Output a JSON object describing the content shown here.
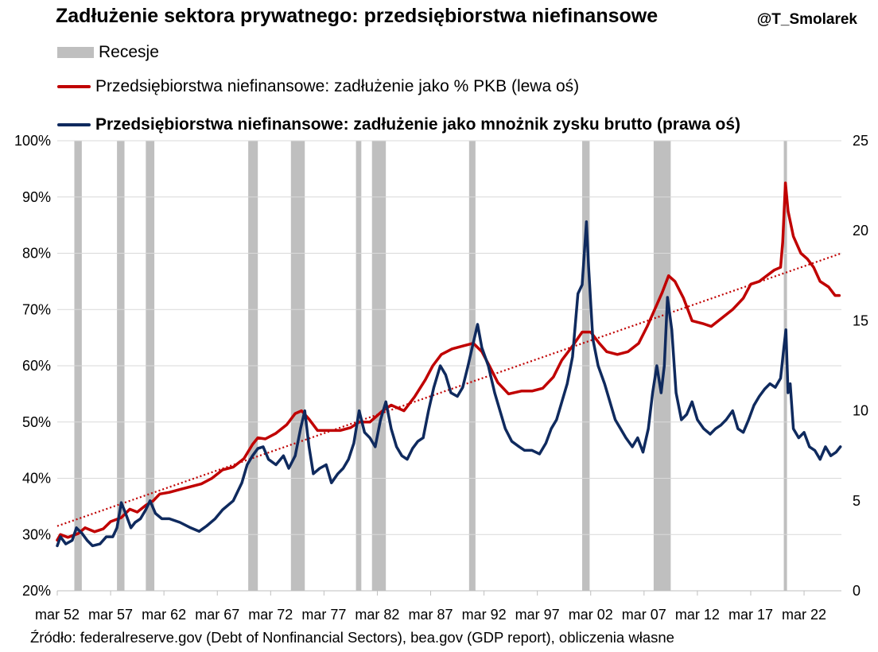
{
  "title": "Zadłużenie sektora prywatnego: przedsiębiorstwa niefinansowe",
  "author": "@T_Smolarek",
  "source": "Źródło: federalreserve.gov (Debt of Nonfinancial Sectors), bea.gov (GDP report), obliczenia własne",
  "colors": {
    "red": "#c00000",
    "navy": "#0f2a5e",
    "recession": "#bfbfbf",
    "trend": "#c00000"
  },
  "chart_data": {
    "type": "line",
    "xlim": [
      1952.0,
      2025.5
    ],
    "x_ticks": [
      {
        "x": 1952.0,
        "label": "mar 52"
      },
      {
        "x": 1957.0,
        "label": "mar 57"
      },
      {
        "x": 1962.0,
        "label": "mar 62"
      },
      {
        "x": 1967.0,
        "label": "mar 67"
      },
      {
        "x": 1972.0,
        "label": "mar 72"
      },
      {
        "x": 1977.0,
        "label": "mar 77"
      },
      {
        "x": 1982.0,
        "label": "mar 82"
      },
      {
        "x": 1987.0,
        "label": "mar 87"
      },
      {
        "x": 1992.0,
        "label": "mar 92"
      },
      {
        "x": 1997.0,
        "label": "mar 97"
      },
      {
        "x": 2002.0,
        "label": "mar 02"
      },
      {
        "x": 2007.0,
        "label": "mar 07"
      },
      {
        "x": 2012.0,
        "label": "mar 12"
      },
      {
        "x": 2017.0,
        "label": "mar 17"
      },
      {
        "x": 2022.0,
        "label": "mar 22"
      }
    ],
    "y_left": {
      "min": 20,
      "max": 100,
      "ticks": [
        "20%",
        "30%",
        "40%",
        "50%",
        "60%",
        "70%",
        "80%",
        "90%",
        "100%"
      ]
    },
    "y_right": {
      "min": 0,
      "max": 25,
      "ticks": [
        "0",
        "5",
        "10",
        "15",
        "20",
        "25"
      ]
    },
    "recessions": [
      [
        1953.6,
        1954.3
      ],
      [
        1957.6,
        1958.3
      ],
      [
        1960.3,
        1961.1
      ],
      [
        1969.9,
        1970.8
      ],
      [
        1973.9,
        1975.2
      ],
      [
        1980.0,
        1980.5
      ],
      [
        1981.5,
        1982.8
      ],
      [
        1990.6,
        1991.2
      ],
      [
        2001.2,
        2001.9
      ],
      [
        2007.9,
        2009.5
      ],
      [
        2020.1,
        2020.4
      ]
    ],
    "legend": [
      {
        "label": "Recesje",
        "swatch": "rect"
      },
      {
        "label": "Przedsiębiorstwa niefinansowe: zadłużenie jako % PKB (lewa oś)",
        "swatch": "red"
      },
      {
        "label": "Przedsiębiorstwa niefinansowe: zadłużenie jako mnożnik zysku brutto (prawa oś)",
        "swatch": "navy"
      }
    ],
    "trend": {
      "axis": "left",
      "from": [
        1952.0,
        31.5
      ],
      "to": [
        2025.5,
        80.0
      ]
    },
    "series": [
      {
        "name": "Przedsiębiorstwa niefinansowe: zadłużenie jako % PKB (lewa oś)",
        "axis": "left",
        "points": [
          [
            1952.0,
            29.0
          ],
          [
            1952.3,
            30.0
          ],
          [
            1953.0,
            29.5
          ],
          [
            1954.0,
            30.2
          ],
          [
            1954.6,
            31.2
          ],
          [
            1955.5,
            30.5
          ],
          [
            1956.3,
            31.0
          ],
          [
            1957.0,
            32.3
          ],
          [
            1958.0,
            33.0
          ],
          [
            1958.8,
            34.5
          ],
          [
            1959.5,
            34.0
          ],
          [
            1960.3,
            35.2
          ],
          [
            1961.0,
            36.0
          ],
          [
            1961.6,
            37.2
          ],
          [
            1962.5,
            37.5
          ],
          [
            1963.5,
            38.0
          ],
          [
            1964.5,
            38.5
          ],
          [
            1965.5,
            39.0
          ],
          [
            1966.5,
            40.0
          ],
          [
            1967.5,
            41.5
          ],
          [
            1968.5,
            42.0
          ],
          [
            1969.5,
            43.5
          ],
          [
            1970.3,
            46.0
          ],
          [
            1970.8,
            47.2
          ],
          [
            1971.5,
            47.0
          ],
          [
            1972.5,
            48.0
          ],
          [
            1973.5,
            49.5
          ],
          [
            1974.3,
            51.5
          ],
          [
            1974.9,
            52.0
          ],
          [
            1975.6,
            50.5
          ],
          [
            1976.4,
            48.5
          ],
          [
            1977.5,
            48.5
          ],
          [
            1978.5,
            48.5
          ],
          [
            1979.5,
            49.0
          ],
          [
            1980.3,
            50.0
          ],
          [
            1981.3,
            50.0
          ],
          [
            1982.5,
            52.0
          ],
          [
            1983.3,
            53.0
          ],
          [
            1984.5,
            52.0
          ],
          [
            1985.5,
            54.5
          ],
          [
            1986.5,
            57.5
          ],
          [
            1987.2,
            60.0
          ],
          [
            1988.0,
            62.0
          ],
          [
            1989.0,
            63.0
          ],
          [
            1990.0,
            63.5
          ],
          [
            1991.0,
            64.0
          ],
          [
            1991.8,
            62.5
          ],
          [
            1992.5,
            60.0
          ],
          [
            1993.3,
            57.0
          ],
          [
            1994.3,
            55.0
          ],
          [
            1995.5,
            55.5
          ],
          [
            1996.5,
            55.5
          ],
          [
            1997.5,
            56.0
          ],
          [
            1998.5,
            58.0
          ],
          [
            1999.3,
            61.0
          ],
          [
            2000.3,
            63.5
          ],
          [
            2001.2,
            66.0
          ],
          [
            2002.0,
            66.0
          ],
          [
            2002.8,
            64.0
          ],
          [
            2003.5,
            62.5
          ],
          [
            2004.5,
            62.0
          ],
          [
            2005.5,
            62.5
          ],
          [
            2006.5,
            64.0
          ],
          [
            2007.3,
            67.0
          ],
          [
            2008.0,
            70.0
          ],
          [
            2008.7,
            73.0
          ],
          [
            2009.3,
            76.0
          ],
          [
            2009.9,
            75.0
          ],
          [
            2010.7,
            72.0
          ],
          [
            2011.5,
            68.0
          ],
          [
            2012.5,
            67.5
          ],
          [
            2013.3,
            67.0
          ],
          [
            2014.3,
            68.5
          ],
          [
            2015.3,
            70.0
          ],
          [
            2016.3,
            72.0
          ],
          [
            2017.0,
            74.5
          ],
          [
            2017.8,
            75.0
          ],
          [
            2018.5,
            76.0
          ],
          [
            2019.2,
            77.0
          ],
          [
            2019.8,
            77.5
          ],
          [
            2020.0,
            82.0
          ],
          [
            2020.25,
            92.5
          ],
          [
            2020.5,
            87.5
          ],
          [
            2021.0,
            83.0
          ],
          [
            2021.7,
            80.0
          ],
          [
            2022.3,
            79.0
          ],
          [
            2022.9,
            77.5
          ],
          [
            2023.5,
            75.0
          ],
          [
            2024.3,
            74.0
          ],
          [
            2024.9,
            72.5
          ],
          [
            2025.3,
            72.5
          ]
        ]
      },
      {
        "name": "Przedsiębiorstwa niefinansowe: zadłużenie jako mnożnik zysku brutto (prawa oś)",
        "axis": "right",
        "points": [
          [
            1952.0,
            2.5
          ],
          [
            1952.3,
            3.0
          ],
          [
            1952.8,
            2.6
          ],
          [
            1953.4,
            2.8
          ],
          [
            1953.8,
            3.5
          ],
          [
            1954.3,
            3.2
          ],
          [
            1954.8,
            2.8
          ],
          [
            1955.3,
            2.5
          ],
          [
            1956.0,
            2.6
          ],
          [
            1956.6,
            3.0
          ],
          [
            1957.2,
            3.0
          ],
          [
            1957.6,
            3.5
          ],
          [
            1958.0,
            4.9
          ],
          [
            1958.4,
            4.3
          ],
          [
            1958.9,
            3.5
          ],
          [
            1959.3,
            3.8
          ],
          [
            1959.8,
            4.0
          ],
          [
            1960.3,
            4.5
          ],
          [
            1960.7,
            5.0
          ],
          [
            1961.2,
            4.3
          ],
          [
            1961.8,
            4.0
          ],
          [
            1962.5,
            4.0
          ],
          [
            1963.5,
            3.8
          ],
          [
            1964.5,
            3.5
          ],
          [
            1965.3,
            3.3
          ],
          [
            1966.0,
            3.6
          ],
          [
            1966.8,
            4.0
          ],
          [
            1967.5,
            4.5
          ],
          [
            1968.5,
            5.0
          ],
          [
            1969.3,
            6.0
          ],
          [
            1969.8,
            7.0
          ],
          [
            1970.3,
            7.5
          ],
          [
            1970.8,
            7.9
          ],
          [
            1971.3,
            8.0
          ],
          [
            1971.8,
            7.3
          ],
          [
            1972.5,
            7.0
          ],
          [
            1973.2,
            7.5
          ],
          [
            1973.7,
            6.8
          ],
          [
            1974.3,
            7.5
          ],
          [
            1974.8,
            9.0
          ],
          [
            1975.2,
            10.0
          ],
          [
            1975.6,
            8.0
          ],
          [
            1976.0,
            6.5
          ],
          [
            1976.6,
            6.8
          ],
          [
            1977.2,
            7.0
          ],
          [
            1977.7,
            6.0
          ],
          [
            1978.3,
            6.5
          ],
          [
            1978.8,
            6.8
          ],
          [
            1979.3,
            7.3
          ],
          [
            1979.8,
            8.2
          ],
          [
            1980.3,
            10.0
          ],
          [
            1980.8,
            8.8
          ],
          [
            1981.3,
            8.5
          ],
          [
            1981.8,
            8.0
          ],
          [
            1982.3,
            9.5
          ],
          [
            1982.8,
            10.5
          ],
          [
            1983.3,
            9.0
          ],
          [
            1983.8,
            8.0
          ],
          [
            1984.3,
            7.5
          ],
          [
            1984.8,
            7.3
          ],
          [
            1985.3,
            7.9
          ],
          [
            1985.8,
            8.3
          ],
          [
            1986.3,
            8.5
          ],
          [
            1986.8,
            10.0
          ],
          [
            1987.3,
            11.3
          ],
          [
            1987.9,
            12.5
          ],
          [
            1988.4,
            12.0
          ],
          [
            1988.9,
            11.0
          ],
          [
            1989.5,
            10.8
          ],
          [
            1990.0,
            11.3
          ],
          [
            1990.5,
            12.5
          ],
          [
            1991.0,
            13.8
          ],
          [
            1991.4,
            14.8
          ],
          [
            1991.8,
            13.5
          ],
          [
            1992.4,
            12.5
          ],
          [
            1993.0,
            11.0
          ],
          [
            1993.5,
            10.0
          ],
          [
            1994.0,
            9.0
          ],
          [
            1994.6,
            8.3
          ],
          [
            1995.3,
            8.0
          ],
          [
            1995.8,
            7.8
          ],
          [
            1996.5,
            7.8
          ],
          [
            1997.2,
            7.6
          ],
          [
            1997.8,
            8.2
          ],
          [
            1998.3,
            9.0
          ],
          [
            1998.8,
            9.5
          ],
          [
            1999.3,
            10.5
          ],
          [
            1999.8,
            11.5
          ],
          [
            2000.3,
            13.0
          ],
          [
            2000.8,
            16.5
          ],
          [
            2001.2,
            17.0
          ],
          [
            2001.6,
            20.5
          ],
          [
            2001.8,
            18.0
          ],
          [
            2002.2,
            14.0
          ],
          [
            2002.7,
            12.5
          ],
          [
            2003.3,
            11.5
          ],
          [
            2003.8,
            10.5
          ],
          [
            2004.3,
            9.5
          ],
          [
            2004.8,
            9.0
          ],
          [
            2005.3,
            8.5
          ],
          [
            2005.9,
            8.0
          ],
          [
            2006.4,
            8.5
          ],
          [
            2006.9,
            7.7
          ],
          [
            2007.4,
            9.0
          ],
          [
            2007.8,
            11.0
          ],
          [
            2008.2,
            12.5
          ],
          [
            2008.6,
            11.0
          ],
          [
            2008.9,
            12.5
          ],
          [
            2009.2,
            16.3
          ],
          [
            2009.6,
            14.5
          ],
          [
            2010.0,
            11.0
          ],
          [
            2010.5,
            9.5
          ],
          [
            2011.0,
            9.8
          ],
          [
            2011.5,
            10.5
          ],
          [
            2012.0,
            9.5
          ],
          [
            2012.6,
            9.0
          ],
          [
            2013.2,
            8.7
          ],
          [
            2013.7,
            9.0
          ],
          [
            2014.2,
            9.2
          ],
          [
            2014.7,
            9.5
          ],
          [
            2015.3,
            10.0
          ],
          [
            2015.8,
            9.0
          ],
          [
            2016.3,
            8.8
          ],
          [
            2016.8,
            9.5
          ],
          [
            2017.3,
            10.3
          ],
          [
            2017.8,
            10.8
          ],
          [
            2018.3,
            11.2
          ],
          [
            2018.8,
            11.5
          ],
          [
            2019.3,
            11.3
          ],
          [
            2019.8,
            11.8
          ],
          [
            2020.1,
            13.5
          ],
          [
            2020.3,
            14.5
          ],
          [
            2020.5,
            11.0
          ],
          [
            2020.7,
            11.5
          ],
          [
            2021.0,
            9.0
          ],
          [
            2021.5,
            8.5
          ],
          [
            2022.0,
            8.8
          ],
          [
            2022.5,
            8.0
          ],
          [
            2023.0,
            7.8
          ],
          [
            2023.5,
            7.3
          ],
          [
            2024.0,
            8.0
          ],
          [
            2024.5,
            7.5
          ],
          [
            2025.0,
            7.7
          ],
          [
            2025.4,
            8.0
          ]
        ]
      }
    ]
  }
}
